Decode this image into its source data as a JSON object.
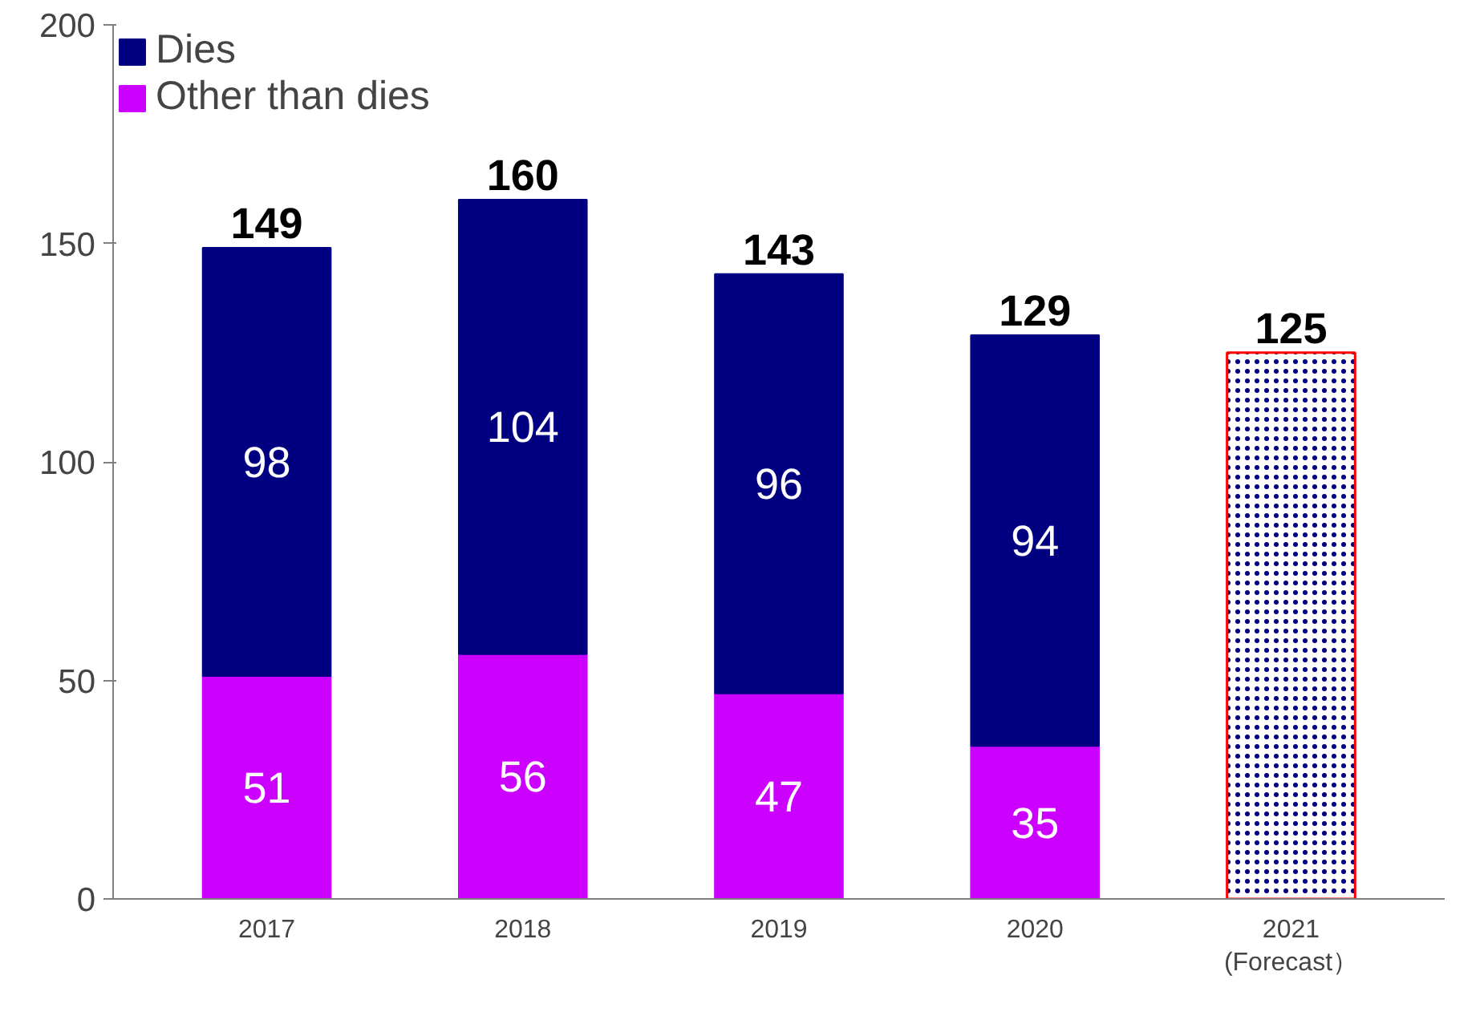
{
  "chart_data": {
    "type": "bar",
    "stacked": true,
    "categories": [
      "2017",
      "2018",
      "2019",
      "2020",
      "2021\n(Forecast）"
    ],
    "series": [
      {
        "name": "Other than dies",
        "color": "#cc00ff",
        "values": [
          51,
          56,
          47,
          35,
          null
        ],
        "value_labels": [
          "51",
          "56",
          "47",
          "35",
          null
        ]
      },
      {
        "name": "Dies",
        "color": "#000080",
        "values": [
          98,
          104,
          96,
          94,
          null
        ],
        "value_labels": [
          "98",
          "104",
          "96",
          "94",
          null
        ]
      },
      {
        "color": "#ffffff",
        "values": [
          null,
          null,
          null,
          null,
          125
        ]
      }
    ],
    "totals": [
      "149",
      "160",
      "143",
      "129",
      "125"
    ],
    "ylim": [
      0,
      200
    ],
    "yticks": [
      0,
      50,
      100,
      150,
      200
    ],
    "grid": false,
    "legend": "top left"
  }
}
